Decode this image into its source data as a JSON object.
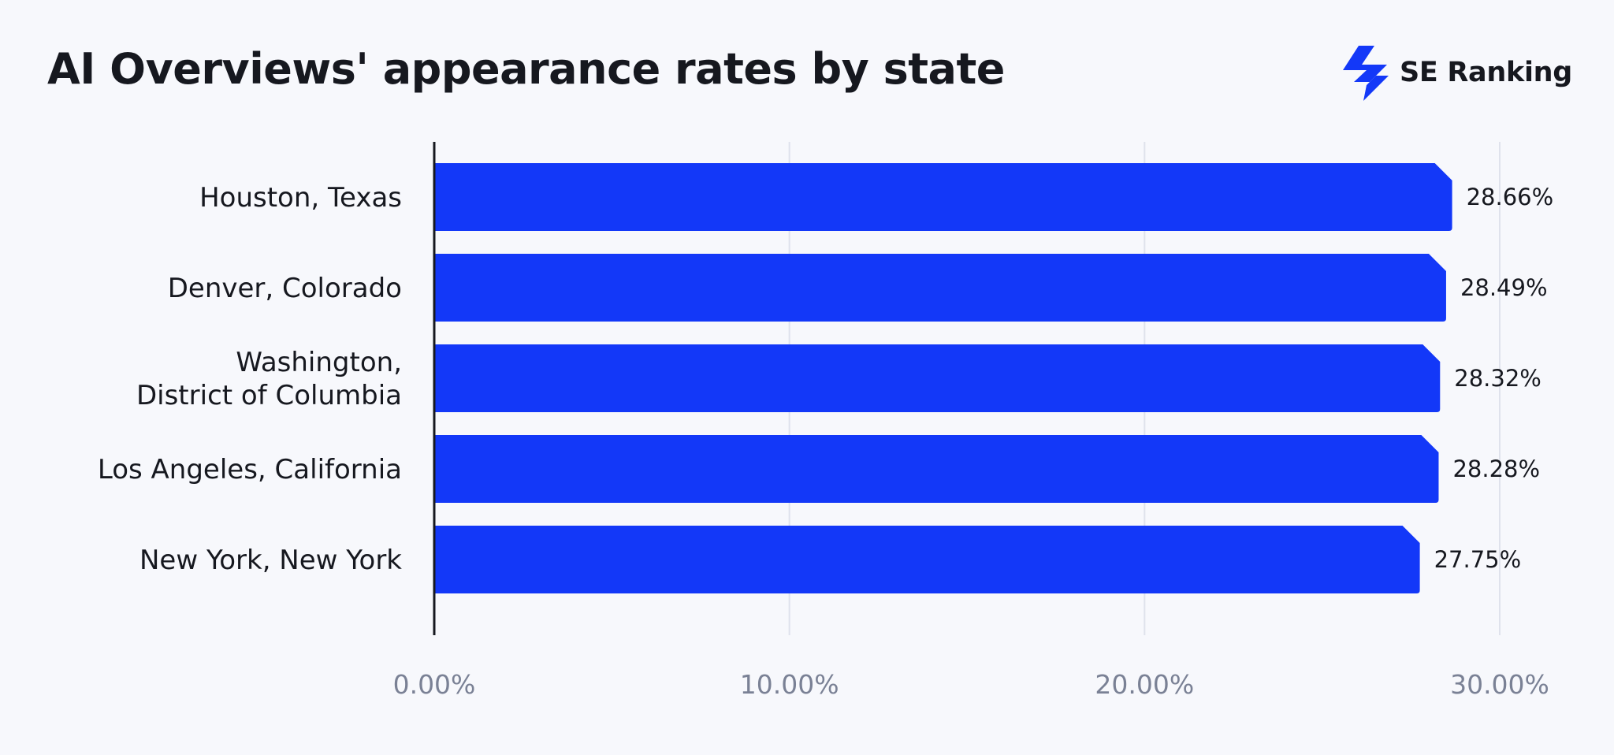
{
  "header": {
    "title": "AI Overviews' appearance rates by state",
    "brand_name": "SE Ranking"
  },
  "colors": {
    "bar": "#1338f8",
    "grid": "#dfe2ec",
    "axis": "#16181f",
    "tick_text": "#7a8195",
    "background": "#f7f8fc"
  },
  "chart_data": {
    "type": "bar",
    "orientation": "horizontal",
    "title": "AI Overviews' appearance rates by state",
    "xlabel": "",
    "ylabel": "",
    "xlim": [
      0,
      30
    ],
    "grid": true,
    "legend": "none",
    "categories": [
      [
        "Houston, Texas"
      ],
      [
        "Denver, Colorado"
      ],
      [
        "Washington,",
        "District of Columbia"
      ],
      [
        "Los Angeles, California"
      ],
      [
        "New York, New York"
      ]
    ],
    "values": [
      28.66,
      28.49,
      28.32,
      28.28,
      27.75
    ],
    "value_labels": [
      "28.66%",
      "28.49%",
      "28.32%",
      "28.28%",
      "27.75%"
    ],
    "ticks": [
      0,
      10,
      20,
      30
    ],
    "tick_labels": [
      "0.00%",
      "10.00%",
      "20.00%",
      "30.00%"
    ]
  }
}
